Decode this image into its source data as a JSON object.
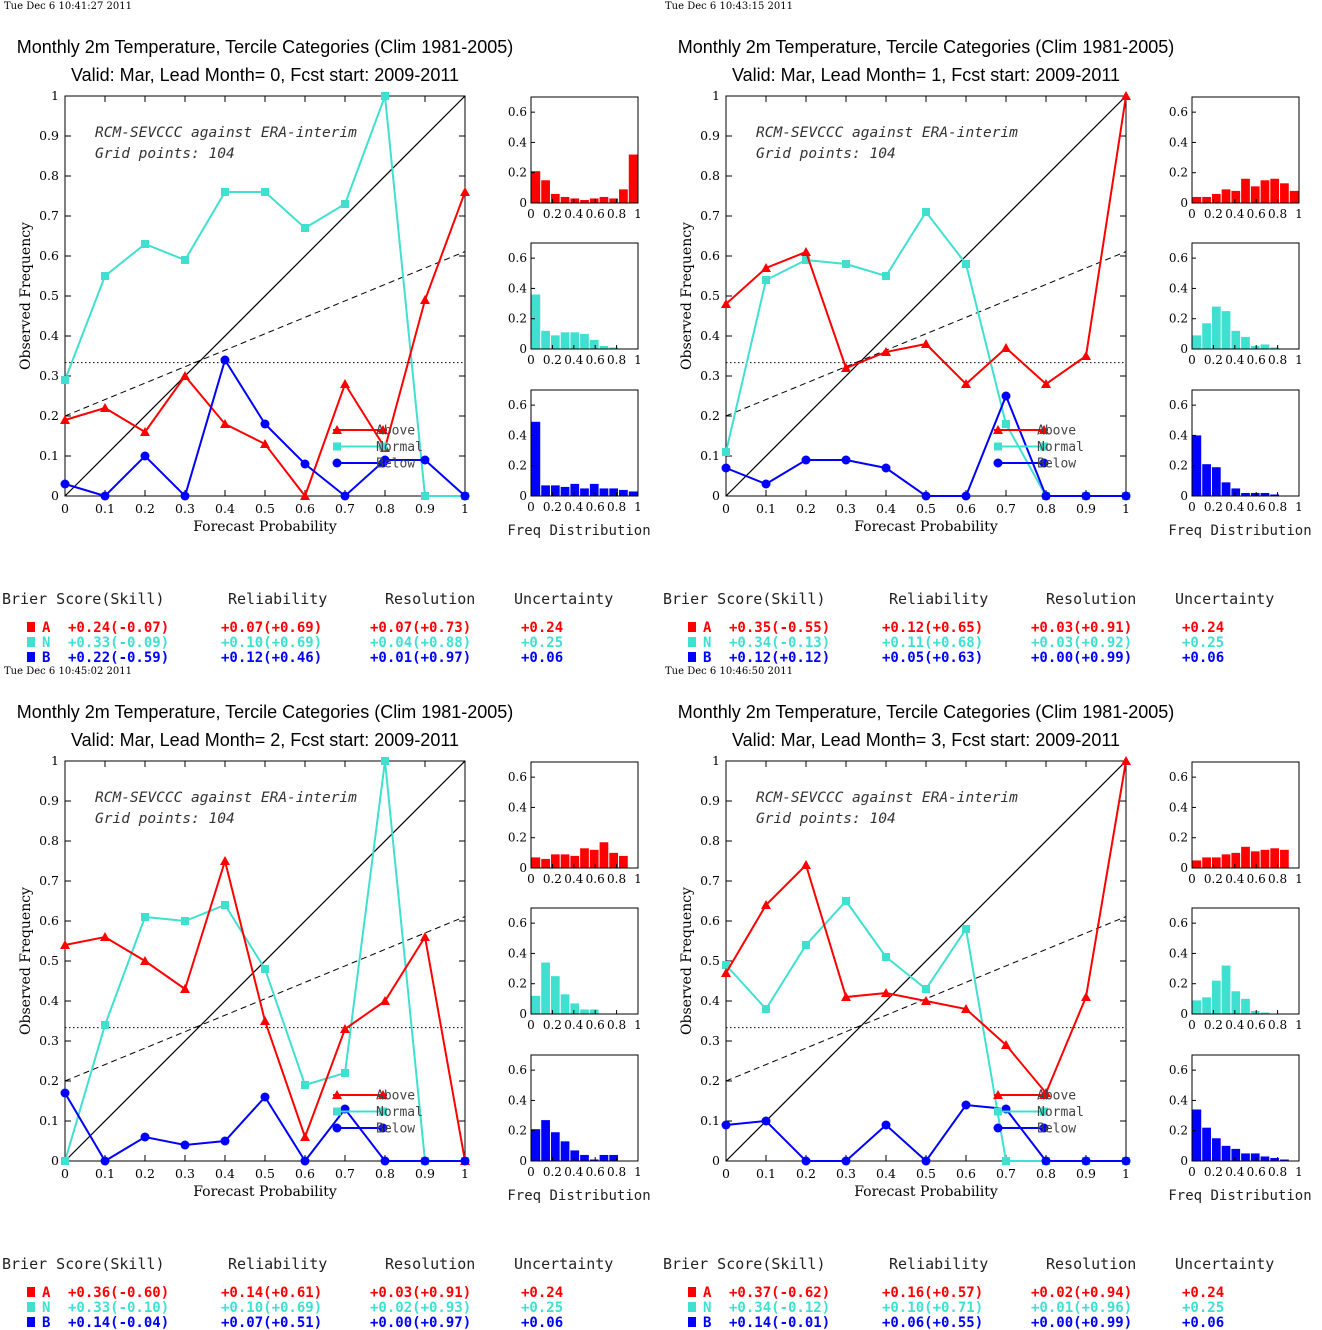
{
  "chart_data": [
    {
      "type": "line",
      "timestamp": "Tue Dec  6 10:41:27 2011",
      "title": "Monthly 2m Temperature, Tercile Categories (Clim 1981-2005)",
      "subtitle": "Valid: Mar, Lead Month= 0, Fcst start: 2009-2011",
      "xlabel": "Forecast Probability",
      "ylabel": "Observed Frequency",
      "xlim": [
        0,
        1
      ],
      "ylim": [
        0,
        1
      ],
      "annotation": [
        "RCM-SEVCCC against ERA-interim",
        "Grid points:  104"
      ],
      "series": [
        {
          "name": "Above",
          "color": "#ff0000",
          "marker": "triangle",
          "points": [
            [
              0,
              0.19
            ],
            [
              0.1,
              0.22
            ],
            [
              0.2,
              0.16
            ],
            [
              0.3,
              0.3
            ],
            [
              0.4,
              0.18
            ],
            [
              0.5,
              0.13
            ],
            [
              0.6,
              0.0
            ],
            [
              0.7,
              0.28
            ],
            [
              0.8,
              0.12
            ],
            [
              0.9,
              0.49
            ],
            [
              1.0,
              0.76
            ]
          ]
        },
        {
          "name": "Normal",
          "color": "#40e0d0",
          "marker": "square",
          "points": [
            [
              0,
              0.29
            ],
            [
              0.1,
              0.55
            ],
            [
              0.2,
              0.63
            ],
            [
              0.3,
              0.59
            ],
            [
              0.4,
              0.76
            ],
            [
              0.5,
              0.76
            ],
            [
              0.6,
              0.67
            ],
            [
              0.7,
              0.73
            ],
            [
              0.8,
              1.0
            ],
            [
              0.9,
              0.0
            ],
            [
              1.0,
              0.0
            ]
          ]
        },
        {
          "name": "Below",
          "color": "#0000ff",
          "marker": "circle",
          "points": [
            [
              0,
              0.03
            ],
            [
              0.1,
              0.0
            ],
            [
              0.2,
              0.1
            ],
            [
              0.3,
              0.0
            ],
            [
              0.4,
              0.34
            ],
            [
              0.5,
              0.18
            ],
            [
              0.6,
              0.08
            ],
            [
              0.7,
              0.0
            ],
            [
              0.8,
              0.09
            ],
            [
              0.9,
              0.09
            ],
            [
              1.0,
              0.0
            ]
          ]
        }
      ],
      "histograms": {
        "xlabel": "Freq Distribution",
        "ylim": [
          0,
          0.7
        ],
        "above": [
          0.21,
          0.15,
          0.06,
          0.04,
          0.03,
          0.02,
          0.03,
          0.04,
          0.03,
          0.09,
          0.32
        ],
        "normal": [
          0.36,
          0.12,
          0.09,
          0.11,
          0.11,
          0.1,
          0.06,
          0.02,
          0.01,
          0.0,
          0.0
        ],
        "below": [
          0.49,
          0.07,
          0.07,
          0.06,
          0.08,
          0.05,
          0.08,
          0.05,
          0.05,
          0.04,
          0.03
        ]
      },
      "brier": {
        "headers": [
          "Brier Score(Skill)",
          "Reliability",
          "Resolution",
          "Uncertainty"
        ],
        "rows": [
          {
            "cat": "A",
            "color": "#ff0000",
            "bs": "+0.24(-0.07)",
            "rel": "+0.07(+0.69)",
            "res": "+0.07(+0.73)",
            "unc": "+0.24"
          },
          {
            "cat": "N",
            "color": "#40e0d0",
            "bs": "+0.33(-0.09)",
            "rel": "+0.10(+0.69)",
            "res": "+0.04(+0.88)",
            "unc": "+0.25"
          },
          {
            "cat": "B",
            "color": "#0000ff",
            "bs": "+0.22(-0.59)",
            "rel": "+0.12(+0.46)",
            "res": "+0.01(+0.97)",
            "unc": "+0.06"
          }
        ]
      }
    },
    {
      "type": "line",
      "timestamp": "Tue Dec  6 10:43:15 2011",
      "title": "Monthly 2m Temperature, Tercile Categories (Clim 1981-2005)",
      "subtitle": "Valid: Mar, Lead Month= 1, Fcst start: 2009-2011",
      "xlabel": "Forecast Probability",
      "ylabel": "Observed Frequency",
      "xlim": [
        0,
        1
      ],
      "ylim": [
        0,
        1
      ],
      "annotation": [
        "RCM-SEVCCC against ERA-interim",
        "Grid points:  104"
      ],
      "series": [
        {
          "name": "Above",
          "color": "#ff0000",
          "marker": "triangle",
          "points": [
            [
              0,
              0.48
            ],
            [
              0.1,
              0.57
            ],
            [
              0.2,
              0.61
            ],
            [
              0.3,
              0.32
            ],
            [
              0.4,
              0.36
            ],
            [
              0.5,
              0.38
            ],
            [
              0.6,
              0.28
            ],
            [
              0.7,
              0.37
            ],
            [
              0.8,
              0.28
            ],
            [
              0.9,
              0.35
            ],
            [
              1.0,
              1.0
            ]
          ]
        },
        {
          "name": "Normal",
          "color": "#40e0d0",
          "marker": "square",
          "points": [
            [
              0,
              0.11
            ],
            [
              0.1,
              0.54
            ],
            [
              0.2,
              0.59
            ],
            [
              0.3,
              0.58
            ],
            [
              0.4,
              0.55
            ],
            [
              0.5,
              0.71
            ],
            [
              0.6,
              0.58
            ],
            [
              0.7,
              0.18
            ],
            [
              0.8,
              0.0
            ],
            [
              0.9,
              0.0
            ],
            [
              1.0,
              0.0
            ]
          ]
        },
        {
          "name": "Below",
          "color": "#0000ff",
          "marker": "circle",
          "points": [
            [
              0,
              0.07
            ],
            [
              0.1,
              0.03
            ],
            [
              0.2,
              0.09
            ],
            [
              0.3,
              0.09
            ],
            [
              0.4,
              0.07
            ],
            [
              0.5,
              0.0
            ],
            [
              0.6,
              0.0
            ],
            [
              0.7,
              0.25
            ],
            [
              0.8,
              0.0
            ],
            [
              0.9,
              0.0
            ],
            [
              1.0,
              0.0
            ]
          ]
        }
      ],
      "histograms": {
        "xlabel": "Freq Distribution",
        "ylim": [
          0,
          0.7
        ],
        "above": [
          0.04,
          0.04,
          0.06,
          0.09,
          0.08,
          0.16,
          0.11,
          0.15,
          0.16,
          0.13,
          0.08
        ],
        "normal": [
          0.09,
          0.17,
          0.28,
          0.25,
          0.12,
          0.08,
          0.02,
          0.03,
          0.01,
          0.0,
          0.0
        ],
        "below": [
          0.4,
          0.21,
          0.19,
          0.09,
          0.05,
          0.02,
          0.02,
          0.02,
          0.01,
          0.0,
          0.0
        ]
      },
      "brier": {
        "headers": [
          "Brier Score(Skill)",
          "Reliability",
          "Resolution",
          "Uncertainty"
        ],
        "rows": [
          {
            "cat": "A",
            "color": "#ff0000",
            "bs": "+0.35(-0.55)",
            "rel": "+0.12(+0.65)",
            "res": "+0.03(+0.91)",
            "unc": "+0.24"
          },
          {
            "cat": "N",
            "color": "#40e0d0",
            "bs": "+0.34(-0.13)",
            "rel": "+0.11(+0.68)",
            "res": "+0.03(+0.92)",
            "unc": "+0.25"
          },
          {
            "cat": "B",
            "color": "#0000ff",
            "bs": "+0.12(+0.12)",
            "rel": "+0.05(+0.63)",
            "res": "+0.00(+0.99)",
            "unc": "+0.06"
          }
        ]
      }
    },
    {
      "type": "line",
      "timestamp": "Tue Dec  6 10:45:02 2011",
      "title": "Monthly 2m Temperature, Tercile Categories (Clim 1981-2005)",
      "subtitle": "Valid: Mar, Lead Month= 2, Fcst start: 2009-2011",
      "xlabel": "Forecast Probability",
      "ylabel": "Observed Frequency",
      "xlim": [
        0,
        1
      ],
      "ylim": [
        0,
        1
      ],
      "annotation": [
        "RCM-SEVCCC against ERA-interim",
        "Grid points:  104"
      ],
      "series": [
        {
          "name": "Above",
          "color": "#ff0000",
          "marker": "triangle",
          "points": [
            [
              0,
              0.54
            ],
            [
              0.1,
              0.56
            ],
            [
              0.2,
              0.5
            ],
            [
              0.3,
              0.43
            ],
            [
              0.4,
              0.75
            ],
            [
              0.5,
              0.35
            ],
            [
              0.6,
              0.06
            ],
            [
              0.7,
              0.33
            ],
            [
              0.8,
              0.4
            ],
            [
              0.9,
              0.56
            ],
            [
              1.0,
              0.0
            ]
          ]
        },
        {
          "name": "Normal",
          "color": "#40e0d0",
          "marker": "square",
          "points": [
            [
              0,
              0.0
            ],
            [
              0.1,
              0.34
            ],
            [
              0.2,
              0.61
            ],
            [
              0.3,
              0.6
            ],
            [
              0.4,
              0.64
            ],
            [
              0.5,
              0.48
            ],
            [
              0.6,
              0.19
            ],
            [
              0.7,
              0.22
            ],
            [
              0.8,
              1.0
            ],
            [
              0.9,
              0.0
            ],
            [
              1.0,
              0.0
            ]
          ]
        },
        {
          "name": "Below",
          "color": "#0000ff",
          "marker": "circle",
          "points": [
            [
              0,
              0.17
            ],
            [
              0.1,
              0.0
            ],
            [
              0.2,
              0.06
            ],
            [
              0.3,
              0.04
            ],
            [
              0.4,
              0.05
            ],
            [
              0.5,
              0.16
            ],
            [
              0.6,
              0.0
            ],
            [
              0.7,
              0.13
            ],
            [
              0.8,
              0.0
            ],
            [
              0.9,
              0.0
            ],
            [
              1.0,
              0.0
            ]
          ]
        }
      ],
      "histograms": {
        "xlabel": "Freq Distribution",
        "ylim": [
          0,
          0.7
        ],
        "above": [
          0.07,
          0.06,
          0.09,
          0.09,
          0.08,
          0.13,
          0.12,
          0.17,
          0.1,
          0.08,
          0.0
        ],
        "normal": [
          0.12,
          0.34,
          0.25,
          0.13,
          0.07,
          0.03,
          0.03,
          0.0,
          0.0,
          0.0,
          0.0
        ],
        "below": [
          0.21,
          0.27,
          0.19,
          0.13,
          0.07,
          0.04,
          0.01,
          0.04,
          0.04,
          0.0,
          0.0
        ]
      },
      "brier": {
        "headers": [
          "Brier Score(Skill)",
          "Reliability",
          "Resolution",
          "Uncertainty"
        ],
        "rows": [
          {
            "cat": "A",
            "color": "#ff0000",
            "bs": "+0.36(-0.60)",
            "rel": "+0.14(+0.61)",
            "res": "+0.03(+0.91)",
            "unc": "+0.24"
          },
          {
            "cat": "N",
            "color": "#40e0d0",
            "bs": "+0.33(-0.10)",
            "rel": "+0.10(+0.69)",
            "res": "+0.02(+0.93)",
            "unc": "+0.25"
          },
          {
            "cat": "B",
            "color": "#0000ff",
            "bs": "+0.14(-0.04)",
            "rel": "+0.07(+0.51)",
            "res": "+0.00(+0.97)",
            "unc": "+0.06"
          }
        ]
      }
    },
    {
      "type": "line",
      "timestamp": "Tue Dec  6 10:46:50 2011",
      "title": "Monthly 2m Temperature, Tercile Categories (Clim 1981-2005)",
      "subtitle": "Valid: Mar, Lead Month= 3, Fcst start: 2009-2011",
      "xlabel": "Forecast Probability",
      "ylabel": "Observed Frequency",
      "xlim": [
        0,
        1
      ],
      "ylim": [
        0,
        1
      ],
      "annotation": [
        "RCM-SEVCCC against ERA-interim",
        "Grid points:  104"
      ],
      "series": [
        {
          "name": "Above",
          "color": "#ff0000",
          "marker": "triangle",
          "points": [
            [
              0,
              0.47
            ],
            [
              0.1,
              0.64
            ],
            [
              0.2,
              0.74
            ],
            [
              0.3,
              0.41
            ],
            [
              0.4,
              0.42
            ],
            [
              0.5,
              0.4
            ],
            [
              0.6,
              0.38
            ],
            [
              0.7,
              0.29
            ],
            [
              0.8,
              0.17
            ],
            [
              0.9,
              0.41
            ],
            [
              1.0,
              1.0
            ]
          ]
        },
        {
          "name": "Normal",
          "color": "#40e0d0",
          "marker": "square",
          "points": [
            [
              0,
              0.49
            ],
            [
              0.1,
              0.38
            ],
            [
              0.2,
              0.54
            ],
            [
              0.3,
              0.65
            ],
            [
              0.4,
              0.51
            ],
            [
              0.5,
              0.43
            ],
            [
              0.6,
              0.58
            ],
            [
              0.7,
              0.0
            ],
            [
              0.8,
              0.0
            ],
            [
              0.9,
              0.0
            ],
            [
              1.0,
              0.0
            ]
          ]
        },
        {
          "name": "Below",
          "color": "#0000ff",
          "marker": "circle",
          "points": [
            [
              0,
              0.09
            ],
            [
              0.1,
              0.1
            ],
            [
              0.2,
              0.0
            ],
            [
              0.3,
              0.0
            ],
            [
              0.4,
              0.09
            ],
            [
              0.5,
              0.0
            ],
            [
              0.6,
              0.14
            ],
            [
              0.7,
              0.13
            ],
            [
              0.8,
              0.0
            ],
            [
              0.9,
              0.0
            ],
            [
              1.0,
              0.0
            ]
          ]
        }
      ],
      "histograms": {
        "xlabel": "Freq Distribution",
        "ylim": [
          0,
          0.7
        ],
        "above": [
          0.05,
          0.07,
          0.07,
          0.09,
          0.1,
          0.14,
          0.11,
          0.12,
          0.13,
          0.12,
          0.0
        ],
        "normal": [
          0.09,
          0.11,
          0.22,
          0.32,
          0.15,
          0.1,
          0.02,
          0.01,
          0.0,
          0.0,
          0.0
        ],
        "below": [
          0.34,
          0.22,
          0.15,
          0.1,
          0.08,
          0.05,
          0.05,
          0.03,
          0.02,
          0.01,
          0.0
        ]
      },
      "brier": {
        "headers": [
          "Brier Score(Skill)",
          "Reliability",
          "Resolution",
          "Uncertainty"
        ],
        "rows": [
          {
            "cat": "A",
            "color": "#ff0000",
            "bs": "+0.37(-0.62)",
            "rel": "+0.16(+0.57)",
            "res": "+0.02(+0.94)",
            "unc": "+0.24"
          },
          {
            "cat": "N",
            "color": "#40e0d0",
            "bs": "+0.34(-0.12)",
            "rel": "+0.10(+0.71)",
            "res": "+0.01(+0.96)",
            "unc": "+0.25"
          },
          {
            "cat": "B",
            "color": "#0000ff",
            "bs": "+0.14(-0.01)",
            "rel": "+0.06(+0.55)",
            "res": "+0.00(+0.99)",
            "unc": "+0.06"
          }
        ]
      }
    }
  ]
}
